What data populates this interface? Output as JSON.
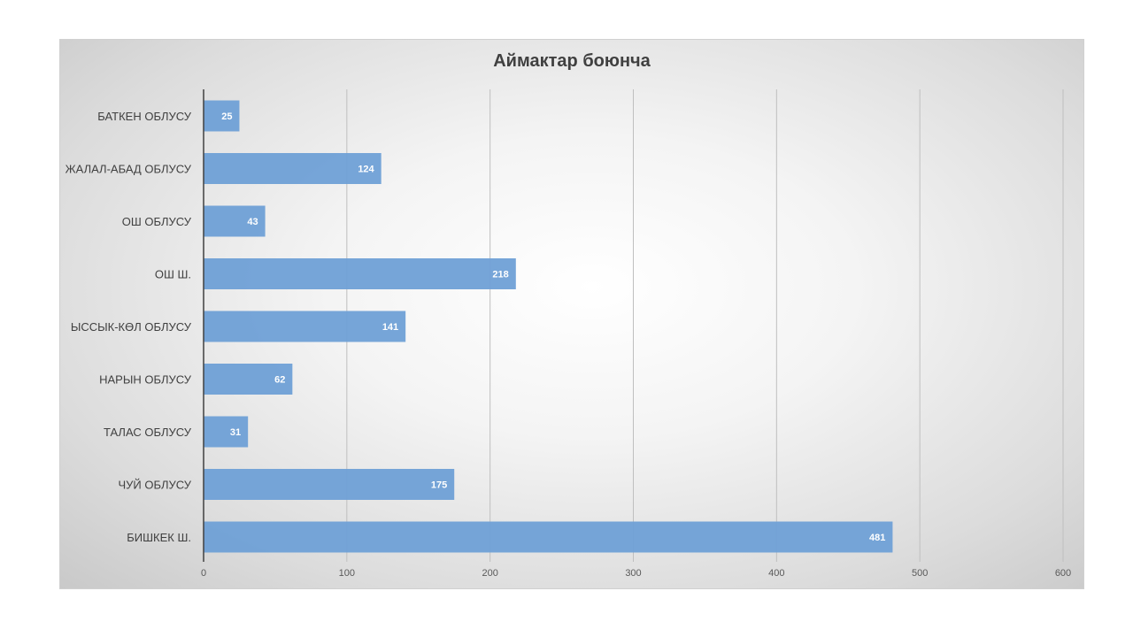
{
  "chart_data": {
    "type": "bar",
    "orientation": "horizontal",
    "title": "Аймактар боюнча",
    "categories": [
      "БАТКЕН ОБЛУСУ",
      "ЖАЛАЛ-АБАД ОБЛУСУ",
      "ОШ ОБЛУСУ",
      "ОШ Ш.",
      "ЫССЫК-КӨЛ ОБЛУСУ",
      "НАРЫН ОБЛУСУ",
      "ТАЛАС ОБЛУСУ",
      "ЧУЙ ОБЛУСУ",
      "БИШКЕК Ш."
    ],
    "values": [
      25,
      124,
      43,
      218,
      141,
      62,
      31,
      175,
      481
    ],
    "xlim": [
      0,
      600
    ],
    "xticks": [
      0,
      100,
      200,
      300,
      400,
      500,
      600
    ],
    "grid": "vertical",
    "data_labels": true,
    "bar_color": "#6fa0d6",
    "legend": "none"
  }
}
